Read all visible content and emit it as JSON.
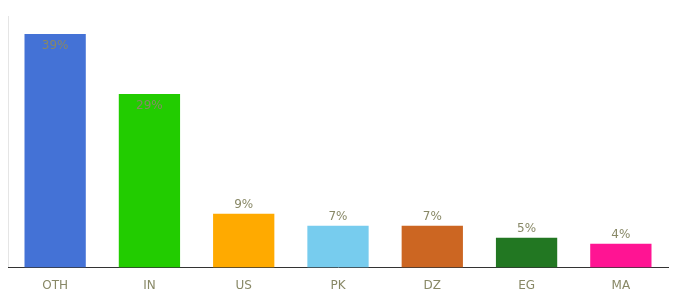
{
  "chart_data": {
    "type": "bar",
    "categories": [
      "OTH",
      "IN",
      "US",
      "PK",
      "DZ",
      "EG",
      "MA"
    ],
    "values": [
      39,
      29,
      9,
      7,
      7,
      5,
      4
    ],
    "value_labels": [
      "39%",
      "29%",
      "9%",
      "7%",
      "7%",
      "5%",
      "4%"
    ],
    "colors": [
      "#4472d6",
      "#22cc00",
      "#ffaa00",
      "#77ccee",
      "#cc6622",
      "#227722",
      "#ff1493"
    ],
    "ylim": [
      0,
      42
    ],
    "data_labels": true,
    "tick_labels": "x",
    "grid": false
  }
}
